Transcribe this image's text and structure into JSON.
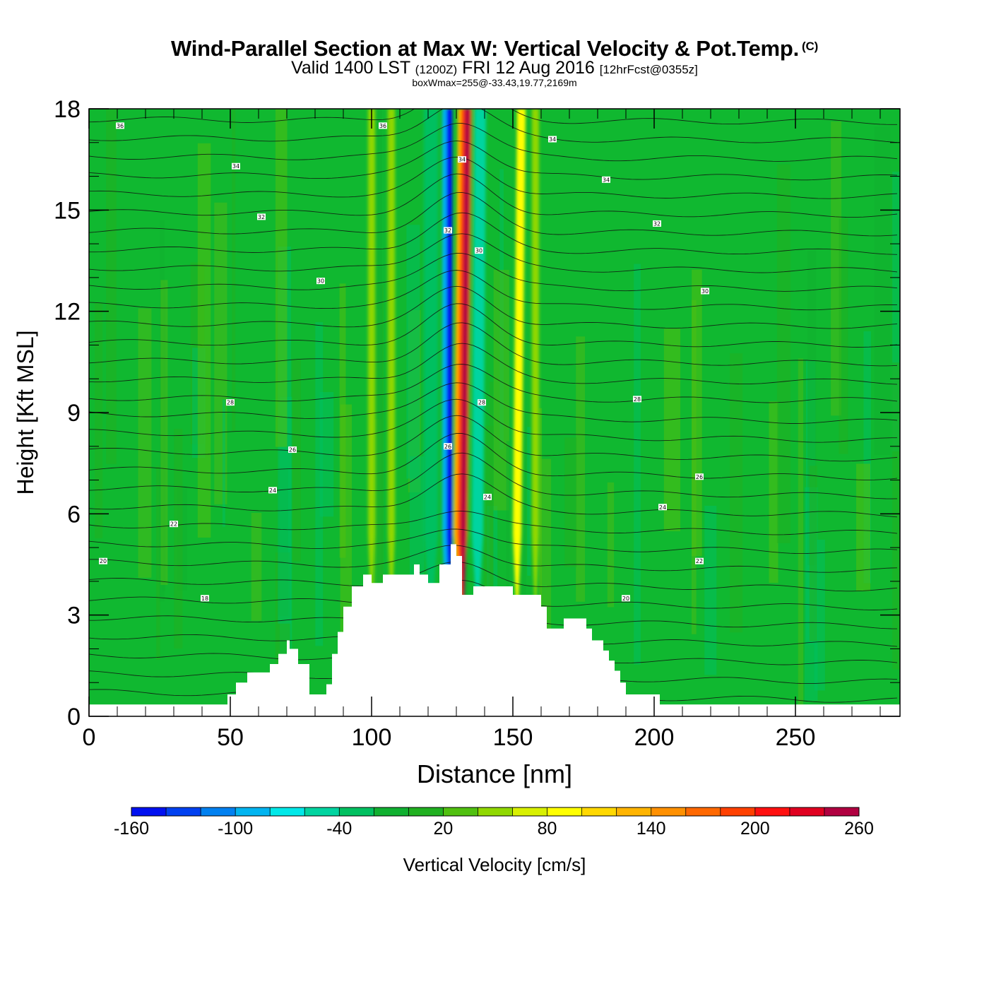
{
  "title": {
    "main": "Wind-Parallel Section at Max W: Vertical Velocity & Pot.Temp.",
    "copyright": "(C)",
    "valid_prefix": "Valid 1400 LST",
    "valid_zulu": "(1200Z)",
    "valid_date": "FRI 12 Aug 2016",
    "forecast": "[12hrFcst@0355z]",
    "box_wmax": "boxWmax=255@-33.43,19.77,2169m"
  },
  "chart_data": {
    "type": "heatmap",
    "title": "Wind-Parallel Section at Max W: Vertical Velocity & Pot.Temp.",
    "xlabel": "Distance [nm]",
    "ylabel": "Height [Kft MSL]",
    "xlim": [
      0,
      287
    ],
    "ylim": [
      0,
      18
    ],
    "x_ticks": [
      0,
      50,
      100,
      150,
      200,
      250
    ],
    "x_tick_labels": [
      "0",
      "50",
      "100",
      "150",
      "200",
      "250"
    ],
    "y_ticks": [
      0,
      3,
      6,
      9,
      12,
      15,
      18
    ],
    "y_tick_labels": [
      "0",
      "3",
      "6",
      "9",
      "12",
      "15",
      "18"
    ],
    "colorbar": {
      "label": "Vertical Velocity [cm/s]",
      "levels": [
        -160,
        -140,
        -120,
        -100,
        -80,
        -60,
        -40,
        -20,
        0,
        20,
        40,
        60,
        80,
        100,
        120,
        140,
        160,
        180,
        200,
        220,
        240,
        260
      ],
      "tick_labels": [
        "-160",
        "-100",
        "-40",
        "20",
        "80",
        "140",
        "200",
        "260"
      ],
      "tick_values": [
        -160,
        -100,
        -40,
        20,
        80,
        140,
        200,
        260
      ],
      "colors": [
        "#0010f0",
        "#0040f0",
        "#0080f0",
        "#00b4f0",
        "#00e8e8",
        "#00d4a0",
        "#00c060",
        "#10b030",
        "#20b020",
        "#50c010",
        "#90d800",
        "#d8f000",
        "#ffff00",
        "#ffd800",
        "#ffb400",
        "#ff9000",
        "#ff6800",
        "#ff4000",
        "#ff1010",
        "#e00020",
        "#b00040"
      ]
    },
    "background_color": "#10b830",
    "terrain": {
      "x": [
        0,
        45,
        49,
        52,
        56,
        60,
        64,
        67,
        70,
        71,
        74,
        78,
        82,
        84,
        86,
        88,
        90,
        93,
        97,
        100,
        104,
        108,
        112,
        115,
        117,
        120,
        122,
        124,
        126,
        128,
        130,
        132,
        134,
        136,
        140,
        144,
        148,
        150,
        154,
        158,
        160,
        162,
        166,
        168,
        170,
        176,
        178,
        180,
        182,
        184,
        186,
        188,
        190,
        192,
        194,
        198,
        200,
        202,
        230,
        232,
        287
      ],
      "h": [
        0.35,
        0.35,
        0.65,
        1.0,
        1.3,
        1.3,
        1.55,
        1.85,
        2.25,
        2.0,
        1.55,
        0.65,
        0.65,
        0.95,
        1.85,
        2.5,
        3.25,
        3.85,
        4.2,
        3.95,
        4.2,
        4.2,
        4.2,
        4.5,
        4.2,
        3.95,
        3.95,
        4.5,
        4.5,
        5.1,
        4.75,
        3.6,
        3.6,
        3.85,
        3.85,
        3.85,
        3.85,
        3.6,
        3.6,
        3.6,
        3.25,
        2.6,
        2.6,
        2.9,
        2.9,
        2.6,
        2.25,
        2.25,
        1.95,
        1.65,
        1.35,
        1.0,
        0.65,
        0.65,
        0.65,
        0.65,
        0.65,
        0.35,
        0.35,
        0.35,
        0.35
      ]
    },
    "updraft_bands": [
      {
        "x_center": 132.5,
        "x_shift_top": 1.5,
        "width": 2.0,
        "value": 240,
        "note": "core updraft"
      },
      {
        "x_center": 132.0,
        "x_shift_top": 1.5,
        "width": 3.5,
        "value": 180
      },
      {
        "x_center": 131.5,
        "x_shift_top": 1.5,
        "width": 5.0,
        "value": 120
      },
      {
        "x_center": 127.5,
        "x_shift_top": 0.0,
        "width": 2.0,
        "value": -150,
        "note": "downdraft"
      },
      {
        "x_center": 126.5,
        "x_shift_top": 0.0,
        "width": 3.0,
        "value": -100
      },
      {
        "x_center": 137.5,
        "x_shift_top": 1.0,
        "width": 4.0,
        "value": -60
      },
      {
        "x_center": 121.0,
        "x_shift_top": 0.0,
        "width": 5.0,
        "value": -40
      },
      {
        "x_center": 151.5,
        "x_shift_top": 1.5,
        "width": 3.0,
        "value": 80
      },
      {
        "x_center": 100.0,
        "x_shift_top": 0.0,
        "width": 2.5,
        "value": 50
      },
      {
        "x_center": 107.0,
        "x_shift_top": 0.0,
        "width": 2.5,
        "value": 40
      },
      {
        "x_center": 158.0,
        "x_shift_top": 0.0,
        "width": 2.5,
        "value": 40
      }
    ],
    "theta_contour_labels": [
      {
        "x": 11,
        "y": 17.5,
        "text": "36"
      },
      {
        "x": 104,
        "y": 17.5,
        "text": "36"
      },
      {
        "x": 164,
        "y": 17.1,
        "text": "34"
      },
      {
        "x": 52,
        "y": 16.3,
        "text": "34"
      },
      {
        "x": 132,
        "y": 16.5,
        "text": "34"
      },
      {
        "x": 183,
        "y": 15.9,
        "text": "34"
      },
      {
        "x": 61,
        "y": 14.8,
        "text": "32"
      },
      {
        "x": 201,
        "y": 14.6,
        "text": "32"
      },
      {
        "x": 127,
        "y": 14.4,
        "text": "32"
      },
      {
        "x": 138,
        "y": 13.8,
        "text": "30"
      },
      {
        "x": 82,
        "y": 12.9,
        "text": "30"
      },
      {
        "x": 218,
        "y": 12.6,
        "text": "30"
      },
      {
        "x": 50,
        "y": 9.3,
        "text": "28"
      },
      {
        "x": 194,
        "y": 9.4,
        "text": "28"
      },
      {
        "x": 139,
        "y": 9.3,
        "text": "28"
      },
      {
        "x": 72,
        "y": 7.9,
        "text": "26"
      },
      {
        "x": 127,
        "y": 8.0,
        "text": "26"
      },
      {
        "x": 216,
        "y": 7.1,
        "text": "26"
      },
      {
        "x": 65,
        "y": 6.7,
        "text": "24"
      },
      {
        "x": 141,
        "y": 6.5,
        "text": "24"
      },
      {
        "x": 203,
        "y": 6.2,
        "text": "24"
      },
      {
        "x": 30,
        "y": 5.7,
        "text": "22"
      },
      {
        "x": 216,
        "y": 4.6,
        "text": "22"
      },
      {
        "x": 5,
        "y": 4.6,
        "text": "20"
      },
      {
        "x": 190,
        "y": 3.5,
        "text": "20"
      },
      {
        "x": 41,
        "y": 3.5,
        "text": "18"
      }
    ]
  }
}
